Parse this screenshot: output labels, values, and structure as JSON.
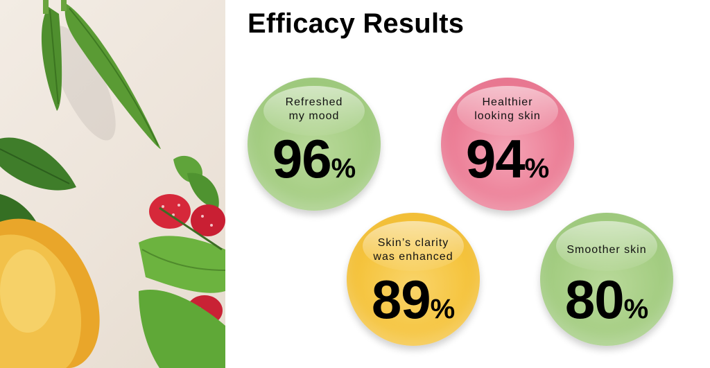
{
  "page": {
    "title": "Efficacy Results"
  },
  "results": [
    {
      "label_line1": "Refreshed",
      "label_line2": "my mood",
      "value": "96",
      "unit": "%",
      "color": "#a4cd82"
    },
    {
      "label_line1": "Healthier",
      "label_line2": "looking skin",
      "value": "94",
      "unit": "%",
      "color": "#ec7f97"
    },
    {
      "label_line1": "Skin’s clarity",
      "label_line2": "was enhanced",
      "value": "89",
      "unit": "%",
      "color": "#f5c43e"
    },
    {
      "label_line1": "Smoother skin",
      "label_line2": "",
      "value": "80",
      "unit": "%",
      "color": "#a4cd82"
    }
  ],
  "illustration": {
    "icons": [
      "okra-icon",
      "strawberry-icon",
      "papaya-icon",
      "leaf-icon"
    ]
  }
}
